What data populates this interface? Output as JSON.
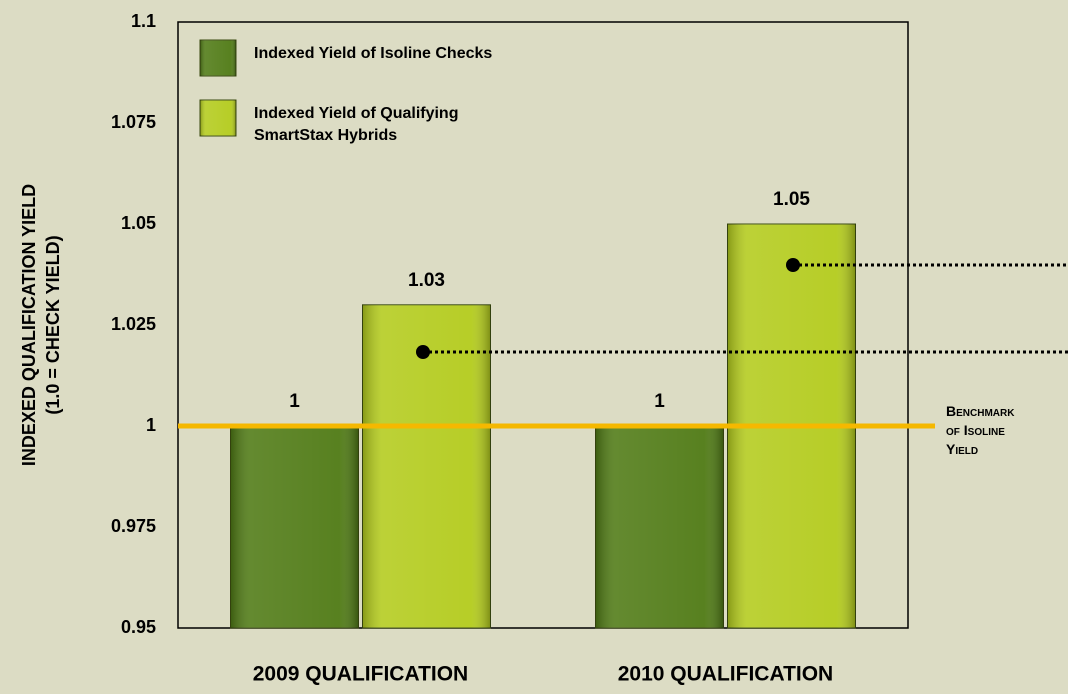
{
  "chart_data": {
    "type": "bar",
    "ylabel": [
      "INDEXED QUALIFICATION YIELD",
      "(1.0 = CHECK YIELD)"
    ],
    "categories": [
      "2009 QUALIFICATION",
      "2010 QUALIFICATION"
    ],
    "series": [
      {
        "name": "Indexed Yield of Isoline Checks",
        "color": "#4f7a14",
        "values": [
          1,
          1
        ]
      },
      {
        "name": "Indexed Yield of Qualifying SmartStax Hybrids",
        "color": "#b3cb1c",
        "values": [
          1.03,
          1.05
        ]
      }
    ],
    "ylim": [
      0.95,
      1.1
    ],
    "yticks": [
      0.95,
      0.975,
      1,
      1.025,
      1.05,
      1.075,
      1.1
    ],
    "benchmark": {
      "value": 1,
      "label": "Benchmark of Isoline Yield",
      "color": "#f5b800"
    },
    "legend": "upper left",
    "grid": false
  }
}
